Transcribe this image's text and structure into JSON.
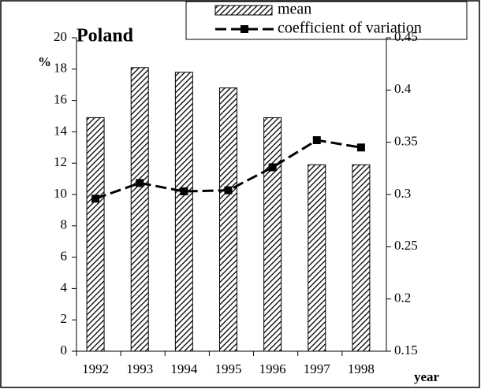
{
  "chart_data": {
    "type": "bar-line",
    "title": "Poland",
    "y_label": "%",
    "x_label": "year",
    "categories": [
      "1992",
      "1993",
      "1994",
      "1995",
      "1996",
      "1997",
      "1998"
    ],
    "series": [
      {
        "name": "mean",
        "type": "bar",
        "color": "#000000",
        "values": [
          14.9,
          18.1,
          17.8,
          16.8,
          14.9,
          11.9,
          11.9
        ]
      },
      {
        "name": "coefficient of variation",
        "type": "line",
        "axis": "y2",
        "color": "#000000",
        "values": [
          0.296,
          0.311,
          0.303,
          0.304,
          0.326,
          0.352,
          0.345
        ]
      }
    ],
    "ylim": [
      0,
      20
    ],
    "yticks": [
      0,
      2,
      4,
      6,
      8,
      10,
      12,
      14,
      16,
      18,
      20
    ],
    "y2lim": [
      0.15,
      0.45
    ],
    "y2ticks": [
      0.15,
      {
        "value": 0.2,
        "label": "0.2"
      },
      0.25,
      {
        "value": 0.3,
        "label": "0.3"
      },
      0.35,
      {
        "value": 0.4,
        "label": "0.4"
      },
      0.45
    ],
    "grid": false
  }
}
